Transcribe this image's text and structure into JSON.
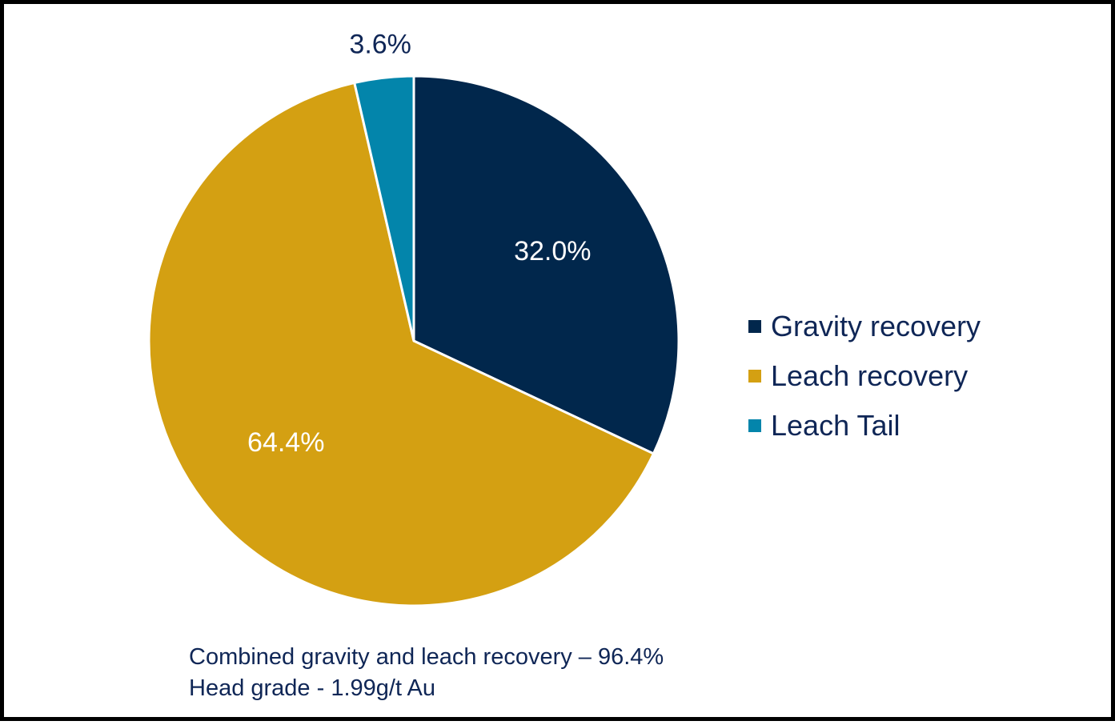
{
  "chart_data": {
    "type": "pie",
    "start_angle": "12 o'clock",
    "direction": "clockwise",
    "slices": [
      {
        "name": "Gravity recovery",
        "value": 32.0,
        "label": "32.0%",
        "color": "#01274c",
        "label_color": "#ffffff"
      },
      {
        "name": "Leach recovery",
        "value": 64.4,
        "label": "64.4%",
        "color": "#d4a012",
        "label_color": "#ffffff"
      },
      {
        "name": "Leach Tail",
        "value": 3.6,
        "label": "3.6%",
        "color": "#0385ab",
        "label_color": "#0f2656"
      }
    ],
    "legend_position": "right",
    "notes": [
      "Combined gravity and leach recovery – 96.4%",
      "Head grade - 1.99g/t Au"
    ]
  }
}
